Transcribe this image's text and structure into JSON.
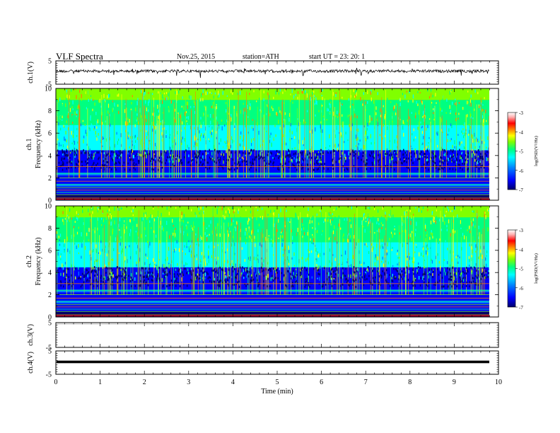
{
  "header": {
    "title": "VLF  Spectra",
    "date": "Nov.25, 2015",
    "station": "station=ATH",
    "start": "start  UT =   23: 20: 1"
  },
  "chart_data": [
    {
      "type": "line",
      "title": "",
      "ylabel": "ch.1(V)",
      "ylim": [
        -5,
        5
      ],
      "yticks": [
        "5",
        "-5"
      ],
      "description_values": {
        "baseline": 0,
        "noise_amplitude": 1.2
      }
    },
    {
      "type": "heatmap",
      "ylabel": "ch.1\nFrequency (kHz)",
      "ylabel_line1": "ch.1",
      "ylabel_line2": "Frequency  (kHz)",
      "ylim": [
        0,
        10
      ],
      "yticks": [
        "0",
        "2",
        "4",
        "6",
        "8",
        "10"
      ],
      "colorbar": {
        "label": "log(PSD(V²/Hz)",
        "range": [
          -7,
          -3
        ],
        "ticks": [
          "-3",
          "-4",
          "-5",
          "-6",
          "-7"
        ]
      }
    },
    {
      "type": "heatmap",
      "ylabel_line1": "ch.2",
      "ylabel_line2": "Frequency  (kHz)",
      "ylim": [
        0,
        10
      ],
      "yticks": [
        "0",
        "2",
        "4",
        "6",
        "8",
        "10"
      ],
      "colorbar": {
        "label": "log(PSD(V²/Hz)",
        "range": [
          -7,
          -3
        ],
        "ticks": [
          "-3",
          "-4",
          "-5",
          "-6",
          "-7"
        ]
      }
    },
    {
      "type": "line",
      "ylabel": "ch.3(V)",
      "ylim": [
        -5,
        5
      ],
      "yticks": [
        "5",
        "-5"
      ]
    },
    {
      "type": "line",
      "ylabel": "ch.4(V)",
      "ylim": [
        -5,
        5
      ],
      "yticks": [
        "5",
        "-5"
      ]
    }
  ],
  "xaxis": {
    "label": "Time  (min)",
    "xlim": [
      0,
      10
    ],
    "ticks": [
      "0",
      "1",
      "2",
      "3",
      "4",
      "5",
      "6",
      "7",
      "8",
      "9",
      "10"
    ]
  },
  "colors": {
    "colormap": [
      "#00006a",
      "#0000ff",
      "#0080ff",
      "#00ffff",
      "#00ff80",
      "#80ff00",
      "#ffff00",
      "#ff8000",
      "#ff0000",
      "#ffb0b0",
      "#ffffff"
    ]
  }
}
